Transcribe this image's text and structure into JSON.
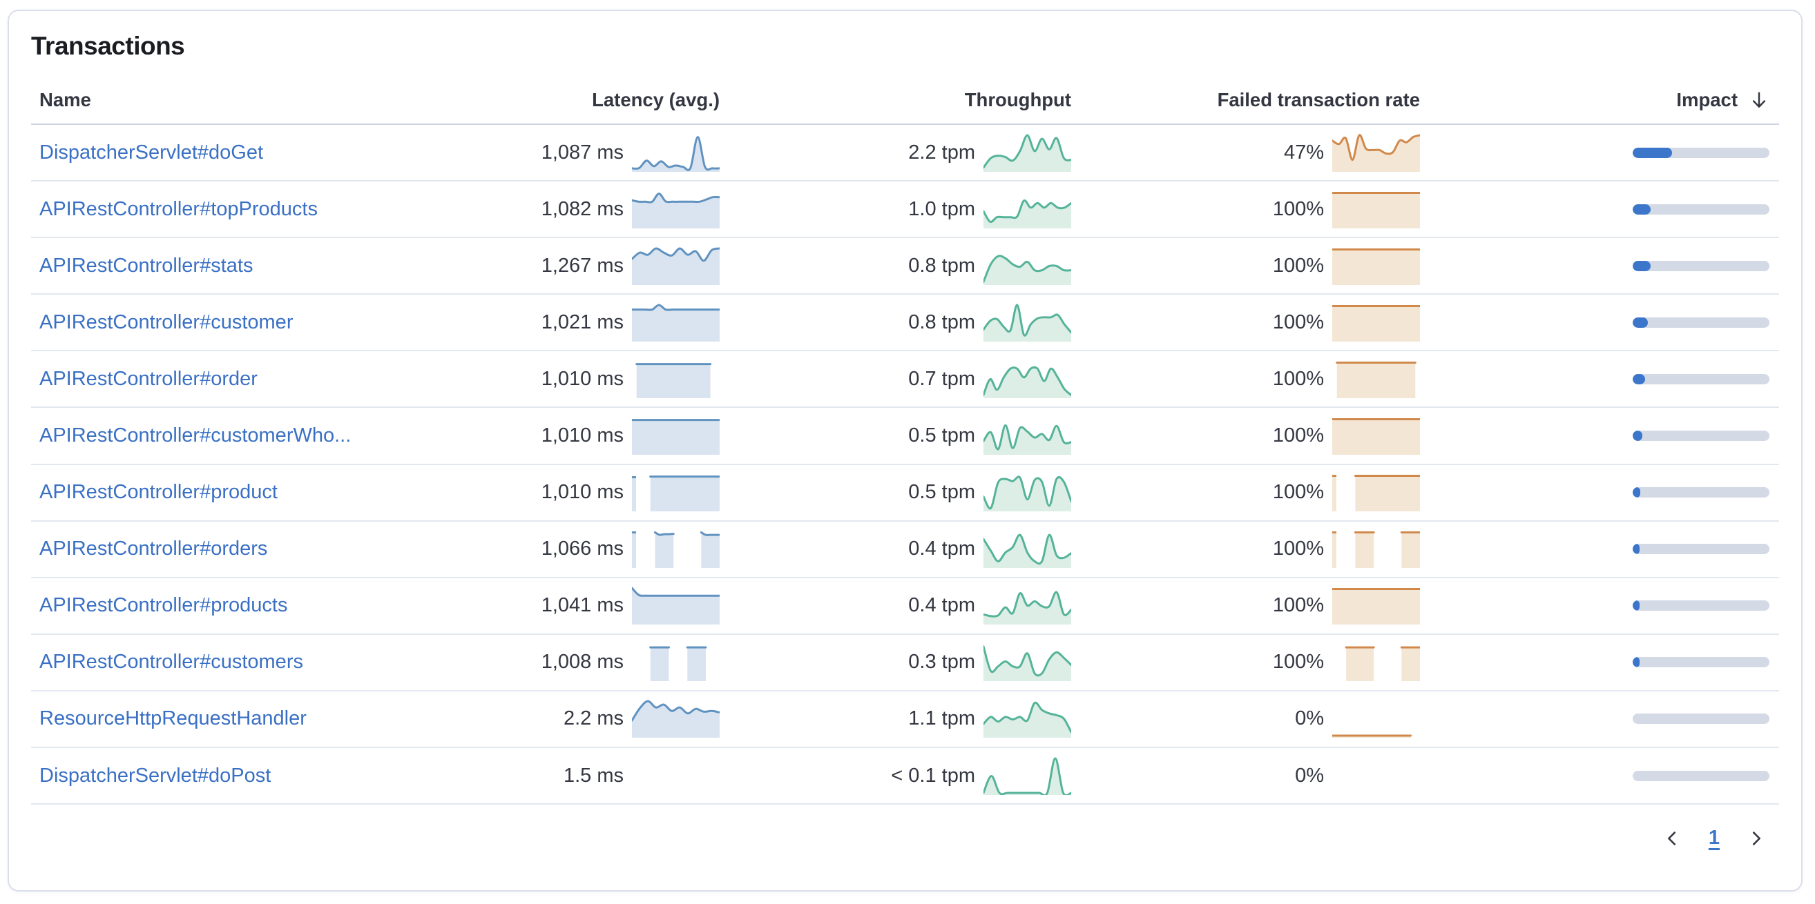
{
  "panel": {
    "title": "Transactions"
  },
  "table": {
    "headers": [
      {
        "key": "name",
        "label": "Name"
      },
      {
        "key": "latency",
        "label": "Latency (avg.)"
      },
      {
        "key": "throughput",
        "label": "Throughput"
      },
      {
        "key": "failed",
        "label": "Failed transaction rate"
      },
      {
        "key": "impact",
        "label": "Impact",
        "sorted": "desc"
      }
    ],
    "rows": [
      {
        "name": "DispatcherServlet#doGet",
        "latency": "1,087 ms",
        "throughput": "2.2 tpm",
        "failed": "47%",
        "impact": 0.29,
        "latency_spark": [
          0.06,
          0.07,
          0.28,
          0.12,
          0.26,
          0.1,
          0.14,
          0.1,
          0.07,
          0.95,
          0.1,
          0.06,
          0.06
        ],
        "throughput_spark": [
          0.08,
          0.35,
          0.42,
          0.38,
          0.28,
          0.55,
          1.0,
          0.55,
          0.9,
          0.6,
          0.92,
          0.35,
          0.3
        ],
        "failed_spark": [
          0.85,
          0.75,
          0.92,
          0.3,
          1.0,
          0.62,
          0.58,
          0.58,
          0.48,
          0.52,
          0.85,
          0.8,
          0.95,
          1.0
        ]
      },
      {
        "name": "APIRestController#topProducts",
        "latency": "1,082 ms",
        "throughput": "1.0 tpm",
        "failed": "100%",
        "impact": 0.133,
        "latency_spark": [
          0.76,
          0.72,
          0.72,
          0.72,
          0.95,
          0.73,
          0.72,
          0.72,
          0.72,
          0.72,
          0.72,
          0.78,
          0.85,
          0.85
        ],
        "throughput_spark": [
          0.45,
          0.15,
          0.28,
          0.28,
          0.28,
          0.3,
          0.75,
          0.55,
          0.68,
          0.55,
          0.68,
          0.55,
          0.55,
          0.68
        ],
        "failed_spark": [
          0.97,
          0.97,
          0.97,
          0.97,
          0.97,
          0.97,
          0.97,
          0.97,
          0.97,
          0.97,
          0.97,
          0.97,
          0.97,
          0.97,
          0.97,
          0.97,
          0.97,
          0.97,
          0.97,
          0.97
        ]
      },
      {
        "name": "APIRestController#stats",
        "latency": "1,267 ms",
        "throughput": "0.8 tpm",
        "failed": "100%",
        "impact": 0.133,
        "latency_spark": [
          0.7,
          0.88,
          0.82,
          1.0,
          0.88,
          0.8,
          1.0,
          0.82,
          0.92,
          0.65,
          0.95,
          1.0
        ],
        "throughput_spark": [
          0.05,
          0.55,
          0.78,
          0.72,
          0.55,
          0.48,
          0.62,
          0.38,
          0.38,
          0.5,
          0.5,
          0.38,
          0.38
        ],
        "failed_spark": [
          0.97,
          0.97,
          0.97,
          0.97,
          0.97,
          0.97,
          0.97,
          0.97,
          0.97,
          0.97,
          0.97,
          0.97,
          0.97,
          0.97,
          0.97,
          0.97,
          0.97,
          0.97,
          0.97,
          0.97
        ]
      },
      {
        "name": "APIRestController#customer",
        "latency": "1,021 ms",
        "throughput": "0.8 tpm",
        "failed": "100%",
        "impact": 0.112,
        "latency_spark": [
          0.87,
          0.87,
          0.87,
          0.87,
          1.0,
          0.87,
          0.87,
          0.87,
          0.87,
          0.87,
          0.87,
          0.87,
          0.87,
          0.87
        ],
        "throughput_spark": [
          0.3,
          0.55,
          0.6,
          0.38,
          0.28,
          1.0,
          0.15,
          0.45,
          0.62,
          0.65,
          0.65,
          0.72,
          0.45,
          0.22
        ],
        "failed_spark": [
          0.97,
          0.97,
          0.97,
          0.97,
          0.97,
          0.97,
          0.97,
          0.97,
          0.97,
          0.97,
          0.97,
          0.97,
          0.97,
          0.97,
          0.97,
          0.97,
          0.97,
          0.97,
          0.97,
          0.97
        ]
      },
      {
        "name": "APIRestController#order",
        "latency": "1,010 ms",
        "throughput": "0.7 tpm",
        "failed": "100%",
        "impact": 0.091,
        "latency_spark": [
          null,
          0.93,
          0.93,
          0.93,
          0.93,
          0.93,
          0.93,
          0.93,
          0.93,
          0.93,
          0.93,
          0.93,
          0.93,
          0.93,
          0.93,
          0.93,
          0.93,
          0.93,
          null,
          null
        ],
        "throughput_spark": [
          0.05,
          0.5,
          0.2,
          0.55,
          0.8,
          0.8,
          0.55,
          0.8,
          0.8,
          0.45,
          0.8,
          0.55,
          0.22,
          0.05
        ],
        "failed_spark": [
          null,
          0.97,
          0.97,
          0.97,
          0.97,
          0.97,
          0.97,
          0.97,
          0.97,
          0.97,
          0.97,
          0.97,
          0.97,
          0.97,
          0.97,
          0.97,
          0.97,
          0.97,
          0.97,
          null
        ]
      },
      {
        "name": "APIRestController#customerWho...",
        "latency": "1,010 ms",
        "throughput": "0.5 tpm",
        "failed": "100%",
        "impact": 0.069,
        "latency_spark": [
          0.95,
          0.95,
          0.95,
          0.95,
          0.95,
          0.95,
          0.95,
          0.95,
          0.95,
          0.95,
          0.95,
          0.95,
          0.95,
          0.95,
          0.95,
          0.95,
          0.95,
          0.95,
          0.95,
          0.95
        ],
        "throughput_spark": [
          0.35,
          0.6,
          0.12,
          0.8,
          0.15,
          0.72,
          0.62,
          0.45,
          0.55,
          0.38,
          0.78,
          0.32,
          0.32
        ],
        "failed_spark": [
          0.97,
          0.97,
          0.97,
          0.97,
          0.97,
          0.97,
          0.97,
          0.97,
          0.97,
          0.97,
          0.97,
          0.97,
          0.97,
          0.97,
          0.97,
          0.97,
          0.97,
          0.97,
          0.97,
          0.97
        ]
      },
      {
        "name": "APIRestController#product",
        "latency": "1,010 ms",
        "throughput": "0.5 tpm",
        "failed": "100%",
        "impact": 0.055,
        "latency_spark": [
          0.93,
          null,
          null,
          null,
          0.95,
          0.95,
          0.95,
          0.95,
          0.95,
          0.95,
          0.95,
          0.95,
          0.95,
          0.95,
          0.95,
          0.95,
          0.95,
          0.95,
          0.95,
          0.95
        ],
        "throughput_spark": [
          0.38,
          0.05,
          0.78,
          0.88,
          0.82,
          0.92,
          0.3,
          0.85,
          0.8,
          0.12,
          0.88,
          0.8,
          0.25
        ],
        "failed_spark": [
          0.97,
          null,
          null,
          null,
          null,
          0.97,
          0.97,
          0.97,
          0.97,
          0.97,
          0.97,
          0.97,
          0.97,
          0.97,
          0.97,
          0.97,
          0.97,
          0.97,
          0.97,
          0.97
        ]
      },
      {
        "name": "APIRestController#orders",
        "latency": "1,066 ms",
        "throughput": "0.4 tpm",
        "failed": "100%",
        "impact": 0.052,
        "latency_spark": [
          0.97,
          null,
          null,
          null,
          null,
          0.97,
          0.9,
          0.92,
          0.92,
          0.93,
          null,
          null,
          null,
          null,
          null,
          0.97,
          0.9,
          0.9,
          0.9,
          0.9
        ],
        "throughput_spark": [
          0.78,
          0.45,
          0.15,
          0.4,
          0.55,
          0.9,
          0.4,
          0.15,
          0.15,
          0.9,
          0.32,
          0.25,
          0.38
        ],
        "failed_spark": [
          0.97,
          null,
          null,
          null,
          null,
          0.97,
          0.97,
          0.97,
          0.97,
          0.97,
          null,
          null,
          null,
          null,
          null,
          0.97,
          0.97,
          0.97,
          0.97,
          0.97
        ]
      },
      {
        "name": "APIRestController#products",
        "latency": "1,041 ms",
        "throughput": "0.4 tpm",
        "failed": "100%",
        "impact": 0.052,
        "latency_spark": [
          1.0,
          0.8,
          0.78,
          0.78,
          0.78,
          0.78,
          0.78,
          0.78,
          0.78,
          0.78,
          0.78,
          0.78,
          0.78,
          0.78
        ],
        "throughput_spark": [
          0.25,
          0.2,
          0.22,
          0.45,
          0.28,
          0.85,
          0.5,
          0.62,
          0.48,
          0.48,
          0.88,
          0.25,
          0.38
        ],
        "failed_spark": [
          0.97,
          0.97,
          0.97,
          0.97,
          0.97,
          0.97,
          0.97,
          0.97,
          0.97,
          0.97,
          0.97,
          0.97,
          0.97,
          0.97,
          0.97,
          0.97,
          0.97,
          0.97,
          0.97,
          0.97
        ]
      },
      {
        "name": "APIRestController#customers",
        "latency": "1,008 ms",
        "throughput": "0.3 tpm",
        "failed": "100%",
        "impact": 0.048,
        "latency_spark": [
          null,
          null,
          null,
          null,
          0.92,
          0.92,
          0.92,
          0.92,
          0.92,
          null,
          null,
          null,
          0.92,
          0.92,
          0.92,
          0.92,
          0.92,
          null,
          null,
          null
        ],
        "throughput_spark": [
          0.95,
          0.25,
          0.38,
          0.52,
          0.38,
          0.38,
          0.75,
          0.18,
          0.18,
          0.58,
          0.78,
          0.62,
          0.42
        ],
        "failed_spark": [
          null,
          null,
          null,
          0.92,
          0.92,
          0.92,
          0.92,
          0.92,
          0.92,
          0.92,
          null,
          null,
          null,
          null,
          null,
          0.92,
          0.92,
          0.92,
          0.92,
          0.92
        ]
      },
      {
        "name": "ResourceHttpRequestHandler",
        "latency": "2.2 ms",
        "throughput": "1.1 tpm",
        "failed": "0%",
        "impact": 0,
        "latency_spark": [
          0.45,
          0.8,
          1.0,
          0.82,
          0.9,
          0.72,
          0.82,
          0.65,
          0.78,
          0.7,
          0.72,
          0.68
        ],
        "throughput_spark": [
          0.35,
          0.55,
          0.42,
          0.55,
          0.48,
          0.55,
          0.45,
          0.95,
          0.75,
          0.65,
          0.6,
          0.5,
          0.12
        ],
        "failed_spark": [
          0.02,
          0.02,
          0.02,
          0.02,
          0.02,
          0.02,
          0.02,
          0.02,
          0.02,
          0.02,
          0.02,
          0.02,
          0.02,
          0.02,
          0.02,
          0.02,
          0.02,
          0.02,
          null,
          null
        ]
      },
      {
        "name": "DispatcherServlet#doPost",
        "latency": "1.5 ms",
        "throughput": "< 0.1 tpm",
        "failed": "0%",
        "impact": 0,
        "latency_spark": null,
        "throughput_spark": [
          0.02,
          0.5,
          0.02,
          0.02,
          0.02,
          0.02,
          0.02,
          0.02,
          0.02,
          1.0,
          0.02,
          0.02
        ],
        "failed_spark": null
      }
    ]
  },
  "pagination": {
    "current_page": "1",
    "prev_icon": "chevron-left",
    "next_icon": "chevron-right"
  },
  "colors": {
    "link": "#3a70c4",
    "latency_line": "#6092c0",
    "latency_fill": "#dae4f1",
    "throughput_line": "#54b399",
    "throughput_fill": "#dceee5",
    "failed_line": "#d0894b",
    "failed_fill": "#f4e6d5",
    "impact_fill": "#3b76ca",
    "impact_track": "#d3d9e5"
  }
}
